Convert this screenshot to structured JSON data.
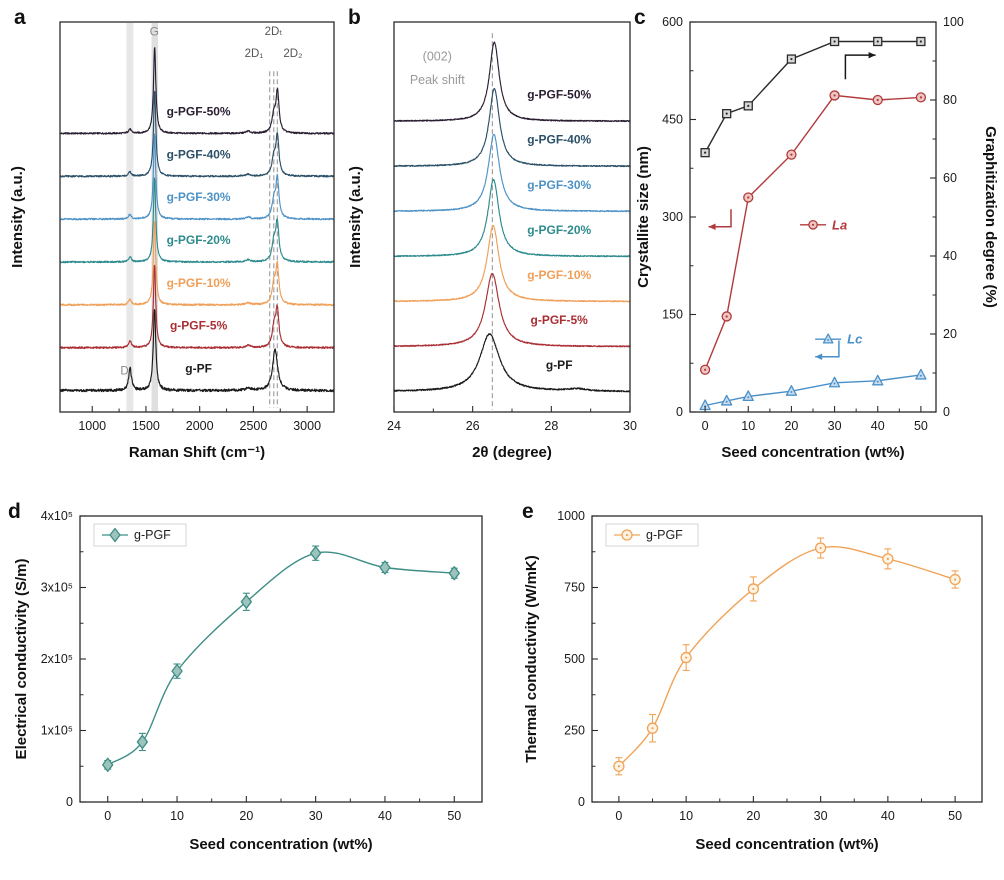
{
  "figure": {
    "bg": "#ffffff",
    "panel_labels": {
      "a": "a",
      "b": "b",
      "c": "c",
      "d": "d",
      "e": "e"
    }
  },
  "chart_data": [
    {
      "id": "a",
      "type": "line",
      "kind": "spectra",
      "title": "Raman spectra of g-PF and g-PGF composites",
      "xlabel": "Raman Shift (cm⁻¹)",
      "ylabel": "Intensity (a.u.)",
      "xlim": [
        700,
        3250
      ],
      "xticks": [
        1000,
        1500,
        2000,
        2500,
        3000
      ],
      "spacing": 1.0,
      "ylim": [
        -0.5,
        8.6
      ],
      "bands": [
        [
          1318,
          1383,
          0.45
        ],
        [
          1552,
          1612,
          0.6
        ]
      ],
      "dashes": [
        2652,
        2690,
        2722
      ],
      "dash_y": [
        7.45,
        -0.4
      ],
      "label_x": 1990,
      "label_dy": 0.42,
      "annotations": [
        {
          "text": "D",
          "x": 1300,
          "y": 0.38,
          "color": "#8a8a8a",
          "size": 11.5
        },
        {
          "text": "G",
          "x": 1578,
          "y": 8.28,
          "color": "#8a8a8a",
          "size": 12
        },
        {
          "text": "2D₁",
          "x": 2505,
          "y": 7.78,
          "color": "#555555",
          "size": 11.5
        },
        {
          "text": "2Dₜ",
          "x": 2688,
          "y": 8.3,
          "color": "#555555",
          "size": 11.5
        },
        {
          "text": "2D₂",
          "x": 2868,
          "y": 7.78,
          "color": "#555555",
          "size": 11.5
        }
      ],
      "series": [
        {
          "name": "g-PGF-50%",
          "color": "#2a1e32",
          "noise": 0.018,
          "peaks": [
            [
              1350,
              0.1,
              15
            ],
            [
              1581,
              2.02,
              13
            ],
            [
              2450,
              0.05,
              24
            ],
            [
              2690,
              0.4,
              20
            ],
            [
              2724,
              0.95,
              17
            ]
          ]
        },
        {
          "name": "g-PGF-40%",
          "color": "#2c5068",
          "noise": 0.018,
          "peaks": [
            [
              1350,
              0.1,
              15
            ],
            [
              1581,
              2.0,
              13
            ],
            [
              2450,
              0.05,
              24
            ],
            [
              2690,
              0.4,
              20
            ],
            [
              2723,
              0.92,
              17
            ]
          ]
        },
        {
          "name": "g-PGF-30%",
          "color": "#4d92c6",
          "noise": 0.018,
          "peaks": [
            [
              1350,
              0.11,
              15
            ],
            [
              1580,
              1.98,
              13
            ],
            [
              2450,
              0.05,
              24
            ],
            [
              2690,
              0.4,
              20
            ],
            [
              2723,
              0.92,
              17
            ]
          ]
        },
        {
          "name": "g-PGF-20%",
          "color": "#2e8b8d",
          "noise": 0.018,
          "peaks": [
            [
              1351,
              0.12,
              15
            ],
            [
              1580,
              1.98,
              13
            ],
            [
              2450,
              0.05,
              24
            ],
            [
              2690,
              0.42,
              20
            ],
            [
              2722,
              0.9,
              18
            ]
          ]
        },
        {
          "name": "g-PGF-10%",
          "color": "#ef9f58",
          "noise": 0.02,
          "peaks": [
            [
              1351,
              0.13,
              15
            ],
            [
              1580,
              1.96,
              13
            ],
            [
              2450,
              0.05,
              24
            ],
            [
              2690,
              0.42,
              20
            ],
            [
              2722,
              0.88,
              18
            ]
          ]
        },
        {
          "name": "g-PGF-5%",
          "color": "#aa2e34",
          "noise": 0.02,
          "peaks": [
            [
              1352,
              0.16,
              15
            ],
            [
              1580,
              1.95,
              13
            ],
            [
              2452,
              0.06,
              24
            ],
            [
              2692,
              0.45,
              20
            ],
            [
              2722,
              0.85,
              18
            ]
          ]
        },
        {
          "name": "g-PF",
          "color": "#1a1a1a",
          "noise": 0.03,
          "peaks": [
            [
              1352,
              0.52,
              16
            ],
            [
              1580,
              1.92,
              14
            ],
            [
              2455,
              0.06,
              26
            ],
            [
              2702,
              0.95,
              28
            ]
          ]
        }
      ]
    },
    {
      "id": "b",
      "type": "line",
      "kind": "spectra",
      "title": "XRD (002) patterns",
      "xlabel": "2θ (degree)",
      "ylabel": "Intensity (a.u.)",
      "xlim": [
        24,
        30
      ],
      "xticks": [
        24,
        26,
        28,
        30
      ],
      "spacing": 1.0,
      "ylim": [
        -0.45,
        8.2
      ],
      "bands": [],
      "dashes": [
        26.5
      ],
      "dash_y": [
        7.95,
        -0.4
      ],
      "label_x": 28.2,
      "label_dy": 0.5,
      "annotations": [
        {
          "text": "(002)",
          "x": 25.1,
          "y": 7.35,
          "color": "#9a9a9a",
          "size": 12.5
        },
        {
          "text": "Peak shift",
          "x": 25.1,
          "y": 6.82,
          "color": "#9a9a9a",
          "size": 12.5
        }
      ],
      "series": [
        {
          "name": "g-PGF-50%",
          "color": "#2a1e32",
          "noise": 0.012,
          "peaks": [
            [
              26.55,
              1.75,
              0.15
            ]
          ]
        },
        {
          "name": "g-PGF-40%",
          "color": "#2c5068",
          "noise": 0.012,
          "peaks": [
            [
              26.55,
              1.72,
              0.16
            ]
          ]
        },
        {
          "name": "g-PGF-30%",
          "color": "#4d92c6",
          "noise": 0.012,
          "peaks": [
            [
              26.54,
              1.7,
              0.17
            ]
          ]
        },
        {
          "name": "g-PGF-20%",
          "color": "#2e8b8d",
          "noise": 0.012,
          "peaks": [
            [
              26.53,
              1.7,
              0.17
            ]
          ]
        },
        {
          "name": "g-PGF-10%",
          "color": "#ef9f58",
          "noise": 0.012,
          "peaks": [
            [
              26.52,
              1.68,
              0.18
            ]
          ]
        },
        {
          "name": "g-PGF-5%",
          "color": "#aa2e34",
          "noise": 0.012,
          "peaks": [
            [
              26.5,
              1.62,
              0.21
            ]
          ]
        },
        {
          "name": "g-PF",
          "color": "#1a1a1a",
          "noise": 0.015,
          "peaks": [
            [
              26.43,
              1.28,
              0.3
            ],
            [
              28.65,
              0.05,
              0.3
            ]
          ]
        }
      ]
    },
    {
      "id": "c",
      "type": "scatter",
      "kind": "scatter",
      "title": "Crystallite size and graphitization degree vs seed concentration",
      "xlabel": "Seed concentration (wt%)",
      "ylabel": "Crystallite size (nm)",
      "ylabel_right": "Graphitization degree (%)",
      "xlim": [
        -3.5,
        53.5
      ],
      "xticks": [
        0,
        10,
        20,
        30,
        40,
        50
      ],
      "ylim": [
        0,
        600
      ],
      "yticks": [
        0,
        150,
        300,
        450,
        600
      ],
      "ylim_right": [
        0,
        100
      ],
      "yticks_right": [
        0,
        20,
        40,
        60,
        80,
        100
      ],
      "x": [
        0,
        5,
        10,
        20,
        30,
        40,
        50
      ],
      "series": [
        {
          "name": "Graphitization degree",
          "axis": "right",
          "marker": "square",
          "color": "#2b2b2b",
          "fill": "#d8d8d8",
          "values": [
            66.5,
            76.5,
            78.5,
            90.5,
            95,
            95,
            95
          ]
        },
        {
          "name": "La",
          "axis": "left",
          "marker": "circle",
          "color": "#b23a3c",
          "fill": "#eec6c2",
          "values": [
            65,
            147,
            330,
            396,
            487,
            480,
            484
          ]
        },
        {
          "name": "Lc",
          "axis": "left",
          "marker": "triangle",
          "color": "#4a90c8",
          "fill": "#c8ddf0",
          "values": [
            10,
            17,
            24,
            32,
            45,
            48,
            57
          ]
        }
      ],
      "annotations": [
        {
          "type": "arrow",
          "pts": [
            [
              32.5,
              512
            ],
            [
              32.5,
              549
            ],
            [
              39.5,
              549
            ]
          ],
          "color": "#1a1a1a"
        },
        {
          "type": "arrow",
          "pts": [
            [
              6,
              312
            ],
            [
              6,
              285
            ],
            [
              0.8,
              285
            ]
          ],
          "color": "#b23a3c"
        },
        {
          "type": "arrow",
          "pts": [
            [
              31,
              110
            ],
            [
              31,
              85
            ],
            [
              25.5,
              85
            ]
          ],
          "color": "#4a90c8"
        },
        {
          "type": "series-label",
          "x": 22,
          "y": 288,
          "marker": "circle",
          "color": "#b23a3c",
          "fill": "#eec6c2",
          "text": "La"
        },
        {
          "type": "series-label",
          "x": 25.5,
          "y": 112,
          "marker": "triangle",
          "color": "#4a90c8",
          "fill": "#c8ddf0",
          "text": "Lc"
        }
      ]
    },
    {
      "id": "d",
      "type": "scatter",
      "kind": "scatter",
      "title": "Electrical conductivity vs seed concentration",
      "xlabel": "Seed concentration (wt%)",
      "ylabel": "Electrical conductivity (S/m)",
      "xlim": [
        -4,
        54
      ],
      "xticks": [
        0,
        10,
        20,
        30,
        40,
        50
      ],
      "ylim": [
        0,
        4
      ],
      "yticks": [
        0,
        1,
        2,
        3,
        4
      ],
      "ytick_labels": [
        "0",
        "1x10⁵",
        "2x10⁵",
        "3x10⁵",
        "4x10⁵"
      ],
      "x": [
        0,
        5,
        10,
        20,
        30,
        40,
        50
      ],
      "legend": {
        "label": "g-PGF",
        "w": 92
      },
      "series": [
        {
          "name": "g-PGF",
          "marker": "diamond",
          "color": "#3e8e86",
          "fill": "#9cc4bd",
          "smooth": true,
          "msize": 5,
          "values": [
            0.52,
            0.84,
            1.83,
            2.8,
            3.48,
            3.28,
            3.2
          ],
          "errors": [
            0.06,
            0.12,
            0.1,
            0.12,
            0.1,
            0.07,
            0.07
          ]
        }
      ]
    },
    {
      "id": "e",
      "type": "scatter",
      "kind": "scatter",
      "title": "Thermal conductivity vs seed concentration",
      "xlabel": "Seed concentration (wt%)",
      "ylabel": "Thermal conductivity (W/mK)",
      "xlim": [
        -4,
        54
      ],
      "xticks": [
        0,
        10,
        20,
        30,
        40,
        50
      ],
      "ylim": [
        0,
        1000
      ],
      "yticks": [
        0,
        250,
        500,
        750,
        1000
      ],
      "x": [
        0,
        5,
        10,
        20,
        30,
        40,
        50
      ],
      "legend": {
        "label": "g-PGF",
        "w": 92
      },
      "series": [
        {
          "name": "g-PGF",
          "marker": "circle",
          "color": "#f0a356",
          "fill": "#fdf3e4",
          "smooth": true,
          "msize": 5,
          "values": [
            125,
            258,
            505,
            745,
            888,
            850,
            778
          ],
          "errors": [
            30,
            48,
            45,
            42,
            35,
            35,
            30
          ]
        }
      ]
    }
  ]
}
